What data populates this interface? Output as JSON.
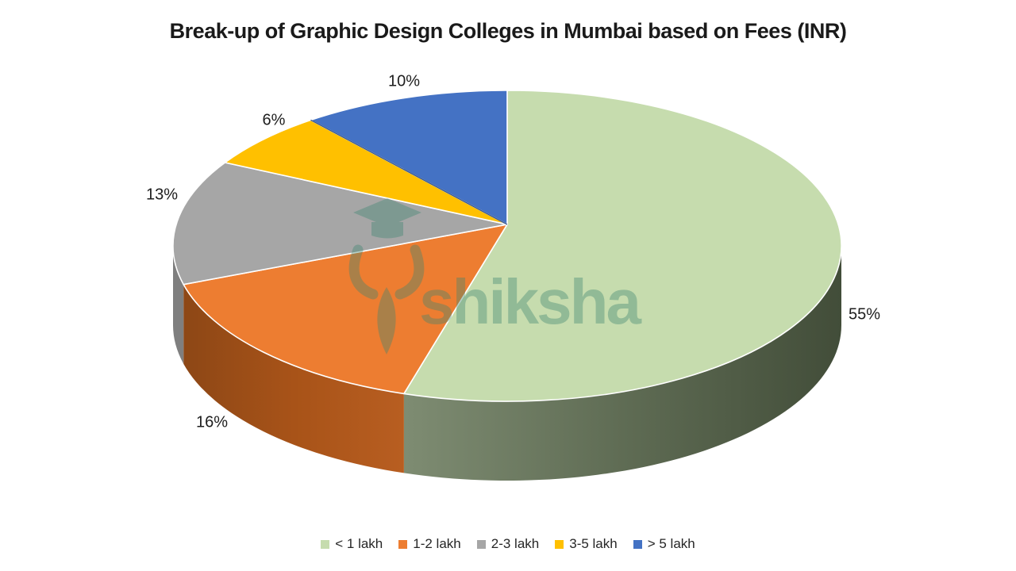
{
  "page": {
    "background": "#ffffff"
  },
  "header": {
    "title": "Break-up of Graphic Design Colleges in Mumbai based on Fees (INR)"
  },
  "watermark": {
    "brand": "shiksha",
    "ink": "#3d8570"
  },
  "chart_data": {
    "type": "pie",
    "effect": "3d",
    "title": "Break-up of Graphic Design Colleges in Mumbai based on Fees (INR)",
    "unit": "percent",
    "start_angle_deg": 0,
    "direction": "clockwise",
    "legend_position": "bottom",
    "categories": [
      "< 1 lakh",
      "1-2 lakh",
      "2-3 lakh",
      "3-5 lakh",
      "> 5 lakh"
    ],
    "values": [
      55,
      16,
      13,
      6,
      10
    ],
    "data_labels": [
      "55%",
      "16%",
      "13%",
      "6%",
      "10%"
    ],
    "colors": [
      "#c6dcae",
      "#ed7d31",
      "#a6a6a6",
      "#ffc000",
      "#4472c4"
    ],
    "side_colors": [
      [
        "#7e8c72",
        "#5f6c54",
        "#424d39"
      ],
      [
        "#8d4716",
        "#a85318",
        "#b85e21"
      ],
      [
        "#7f7f7f"
      ],
      [],
      []
    ],
    "slice_edge_color": "#ffffff",
    "dark_edge_color": "#3c5a8e",
    "label_color": "#1d1d1d"
  },
  "legend": {
    "position": "bottom"
  }
}
